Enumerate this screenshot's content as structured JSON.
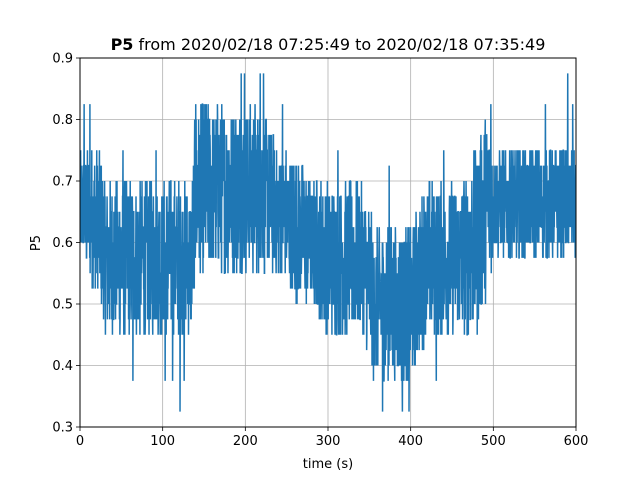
{
  "chart_data": {
    "type": "line",
    "title_bold": "P5",
    "title_rest": " from 2020/02/18 07:25:49 to 2020/02/18 07:35:49",
    "xlabel": "time (s)",
    "ylabel": "P5",
    "xlim": [
      0,
      600
    ],
    "ylim": [
      0.3,
      0.9
    ],
    "x_ticks": [
      0,
      100,
      200,
      300,
      400,
      500,
      600
    ],
    "x_tick_labels": [
      "0",
      "100",
      "200",
      "300",
      "400",
      "500",
      "600"
    ],
    "y_ticks": [
      0.3,
      0.4,
      0.5,
      0.6,
      0.7,
      0.8,
      0.9
    ],
    "y_tick_labels": [
      "0.3",
      "0.4",
      "0.5",
      "0.6",
      "0.7",
      "0.8",
      "0.9"
    ],
    "grid": true,
    "line_color": "#1f77b4",
    "band": {
      "x": [
        0,
        25,
        30,
        60,
        80,
        100,
        120,
        135,
        140,
        160,
        180,
        200,
        220,
        240,
        260,
        280,
        300,
        320,
        340,
        360,
        380,
        400,
        420,
        440,
        460,
        480,
        490,
        500,
        520,
        540,
        560,
        580,
        600
      ],
      "low": [
        0.575,
        0.5,
        0.45,
        0.45,
        0.45,
        0.45,
        0.45,
        0.45,
        0.55,
        0.55,
        0.55,
        0.55,
        0.55,
        0.55,
        0.5,
        0.5,
        0.45,
        0.45,
        0.45,
        0.375,
        0.375,
        0.375,
        0.45,
        0.45,
        0.45,
        0.45,
        0.5,
        0.575,
        0.575,
        0.575,
        0.575,
        0.575,
        0.575
      ],
      "high": [
        0.75,
        0.75,
        0.7,
        0.7,
        0.7,
        0.7,
        0.7,
        0.7,
        0.825,
        0.825,
        0.825,
        0.825,
        0.825,
        0.75,
        0.75,
        0.7,
        0.7,
        0.7,
        0.7,
        0.625,
        0.625,
        0.625,
        0.7,
        0.7,
        0.7,
        0.75,
        0.825,
        0.75,
        0.75,
        0.75,
        0.75,
        0.75,
        0.75
      ]
    },
    "spikes": [
      {
        "x": 5,
        "y": 0.825
      },
      {
        "x": 12,
        "y": 0.825
      },
      {
        "x": 52,
        "y": 0.75
      },
      {
        "x": 64,
        "y": 0.375
      },
      {
        "x": 92,
        "y": 0.75
      },
      {
        "x": 103,
        "y": 0.375
      },
      {
        "x": 112,
        "y": 0.375
      },
      {
        "x": 121,
        "y": 0.325
      },
      {
        "x": 126,
        "y": 0.375
      },
      {
        "x": 140,
        "y": 0.825
      },
      {
        "x": 195,
        "y": 0.875
      },
      {
        "x": 199,
        "y": 0.875
      },
      {
        "x": 218,
        "y": 0.875
      },
      {
        "x": 222,
        "y": 0.875
      },
      {
        "x": 245,
        "y": 0.825
      },
      {
        "x": 312,
        "y": 0.75
      },
      {
        "x": 355,
        "y": 0.375
      },
      {
        "x": 366,
        "y": 0.325
      },
      {
        "x": 374,
        "y": 0.725
      },
      {
        "x": 390,
        "y": 0.325
      },
      {
        "x": 398,
        "y": 0.325
      },
      {
        "x": 431,
        "y": 0.375
      },
      {
        "x": 440,
        "y": 0.75
      },
      {
        "x": 497,
        "y": 0.825
      },
      {
        "x": 563,
        "y": 0.825
      },
      {
        "x": 590,
        "y": 0.875
      },
      {
        "x": 596,
        "y": 0.825
      }
    ]
  }
}
